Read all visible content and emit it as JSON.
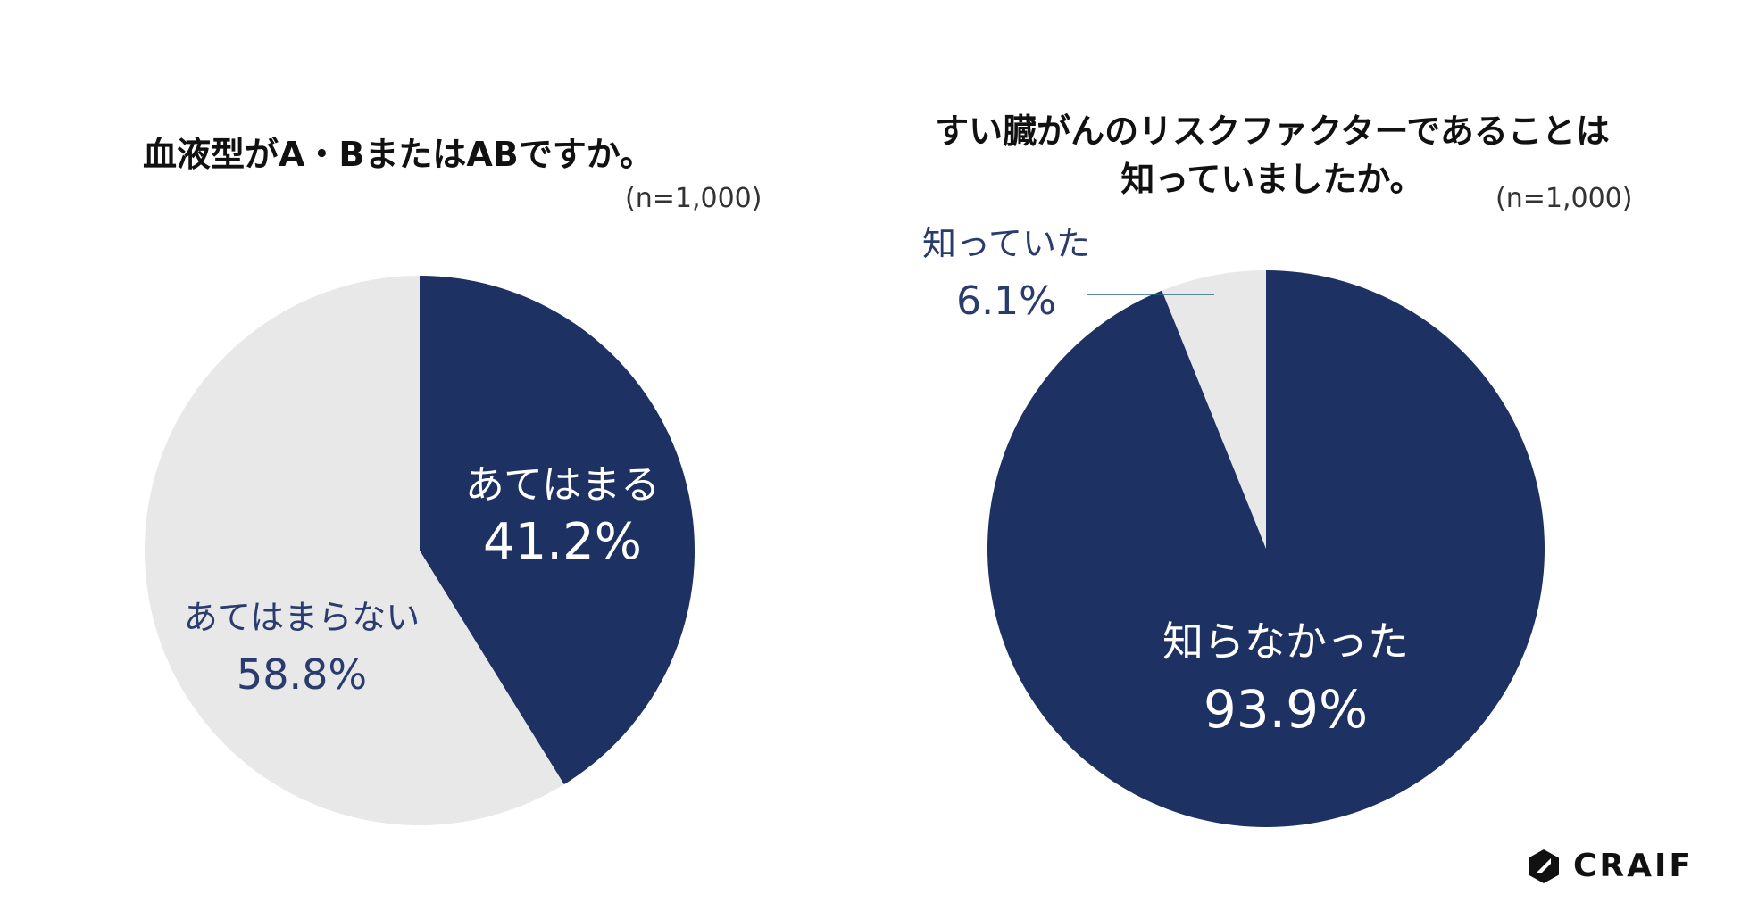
{
  "colors": {
    "primary": "#1e3163",
    "secondary": "#e8e8e8",
    "label_light": "#ffffff",
    "label_dark": "#2a3c6e"
  },
  "logo": {
    "text": "CRAIF",
    "icon": "craif-hexagon-icon"
  },
  "chart_data": [
    {
      "type": "pie",
      "title": "血液型がA・BまたはABですか。",
      "sample_size": "(n=1,000)",
      "slices": [
        {
          "label": "あてはまる",
          "value": 41.2,
          "display": "41.2%",
          "color": "#1e3163",
          "label_style": "inside"
        },
        {
          "label": "あてはまらない",
          "value": 58.8,
          "display": "58.8%",
          "color": "#e8e8e8",
          "label_style": "inside"
        }
      ]
    },
    {
      "type": "pie",
      "title_lines": [
        "すい臓がんのリスクファクターであることは",
        "知っていましたか。"
      ],
      "sample_size": "(n=1,000)",
      "slices": [
        {
          "label": "知っていた",
          "value": 6.1,
          "display": "6.1%",
          "color": "#e8e8e8",
          "label_style": "callout"
        },
        {
          "label": "知らなかった",
          "value": 93.9,
          "display": "93.9%",
          "color": "#1e3163",
          "label_style": "inside"
        }
      ]
    }
  ]
}
